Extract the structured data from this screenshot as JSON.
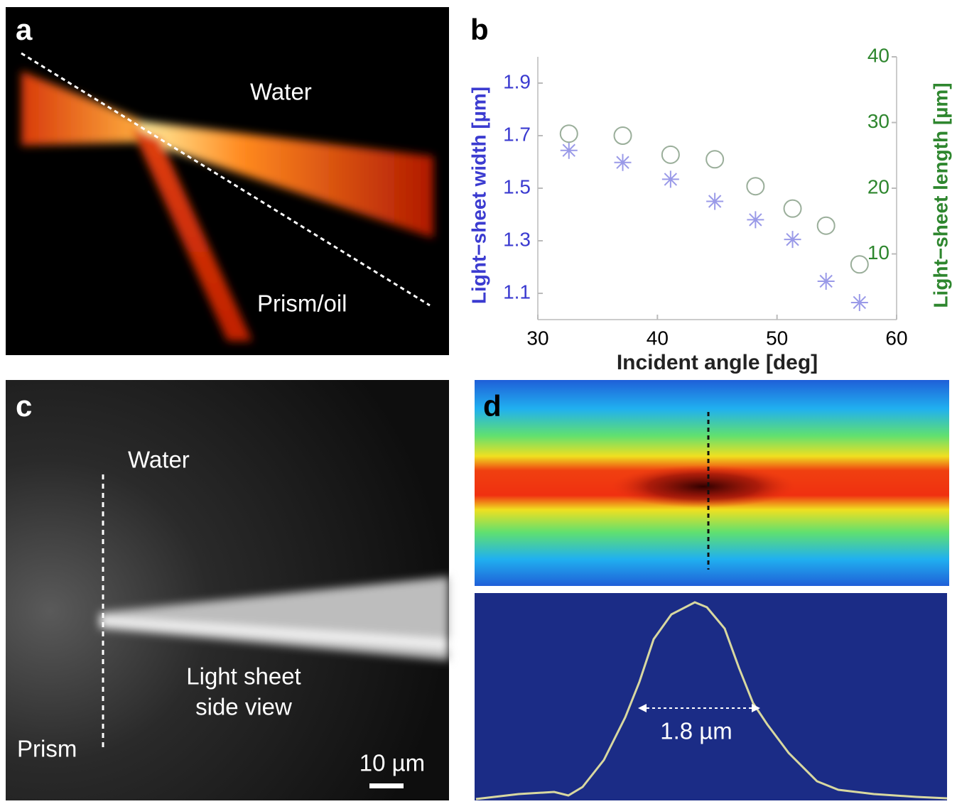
{
  "panels": {
    "a": {
      "label": "a",
      "texts": [
        "Water",
        "Prism/oil"
      ]
    },
    "c": {
      "label": "c",
      "texts": [
        "Water",
        "Light sheet",
        "side view",
        "Prism"
      ],
      "scale_bar": "10 µm"
    },
    "d": {
      "label": "d",
      "width_label": "1.8 µm"
    }
  },
  "chart_data": {
    "type": "scatter",
    "panel_label": "b",
    "xlabel": "Incident angle [deg]",
    "ylabel": "Light−sheet width [µm]",
    "y2label": "Light−sheet length [µm]",
    "x": [
      32.6,
      37.1,
      41.1,
      44.8,
      48.2,
      51.3,
      54.1,
      56.9
    ],
    "xlim": [
      30,
      60
    ],
    "xticks": [
      30,
      40,
      50,
      60
    ],
    "ylim": [
      1.0,
      2.0
    ],
    "yticks": [
      1.1,
      1.3,
      1.5,
      1.7,
      1.9
    ],
    "y2lim": [
      0,
      40
    ],
    "y2ticks": [
      10,
      20,
      30,
      40
    ],
    "y_color": "#3b3bd0",
    "y2_color": "#2e862e",
    "series": [
      {
        "color": "#9a9ae8",
        "marker": "star",
        "values": [
          1.644,
          1.598,
          1.534,
          1.45,
          1.38,
          1.305,
          1.146,
          1.065
        ]
      },
      {
        "color": "#9aae9a",
        "marker": "circle",
        "axis": "y2",
        "values": [
          28.3,
          28.0,
          25.1,
          24.4,
          20.3,
          16.9,
          14.3,
          8.4
        ]
      }
    ]
  }
}
